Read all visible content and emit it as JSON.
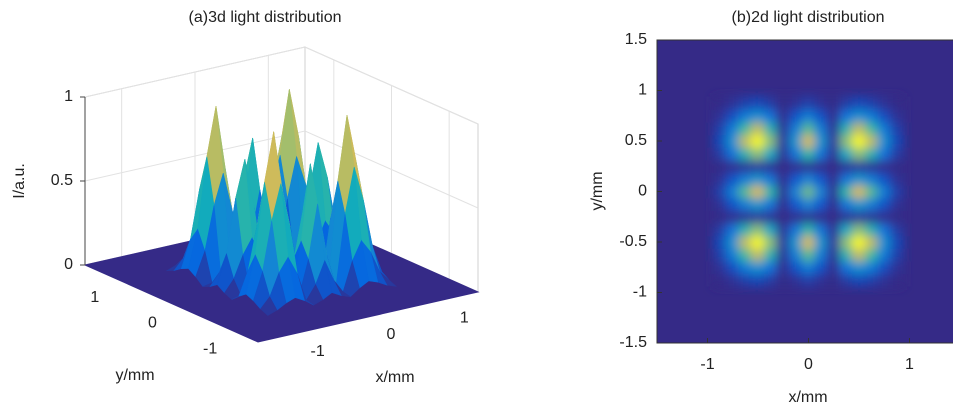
{
  "chart_data": [
    {
      "type": "surface3d",
      "title": "(a)3d light distribution",
      "xlabel": "x/mm",
      "ylabel": "y/mm",
      "zlabel": "I/a.u.",
      "colormap": "parula",
      "grid": true,
      "xlim": [
        -1.5,
        1.5
      ],
      "ylim": [
        -1.5,
        1.5
      ],
      "zlim": [
        0,
        1
      ],
      "xticks": [
        -1,
        0,
        1
      ],
      "yticks": [
        -1,
        0,
        1
      ],
      "zticks": [
        0,
        0.5,
        1
      ],
      "x": [
        -0.875,
        -0.75,
        -0.625,
        -0.5,
        -0.375,
        -0.25,
        -0.125,
        0,
        0.125,
        0.25,
        0.375,
        0.5,
        0.625,
        0.75,
        0.875
      ],
      "y": [
        -0.875,
        -0.75,
        -0.625,
        -0.5,
        -0.375,
        -0.25,
        -0.125,
        0,
        0.125,
        0.25,
        0.375,
        0.5,
        0.625,
        0.75,
        0.875
      ],
      "z": [
        [
          0,
          0.02,
          0.05,
          0.07,
          0.04,
          0,
          0.02,
          0.05,
          0.02,
          0,
          0.04,
          0.07,
          0.05,
          0.02,
          0
        ],
        [
          0.02,
          0.08,
          0.21,
          0.29,
          0.18,
          0.01,
          0.09,
          0.22,
          0.09,
          0.01,
          0.18,
          0.29,
          0.21,
          0.08,
          0.02
        ],
        [
          0.05,
          0.21,
          0.5,
          0.71,
          0.44,
          0.02,
          0.22,
          0.54,
          0.22,
          0.02,
          0.44,
          0.71,
          0.5,
          0.21,
          0.05
        ],
        [
          0.07,
          0.29,
          0.71,
          1,
          0.62,
          0.03,
          0.31,
          0.76,
          0.31,
          0.03,
          0.62,
          1,
          0.71,
          0.29,
          0.07
        ],
        [
          0.04,
          0.18,
          0.44,
          0.62,
          0.38,
          0.02,
          0.19,
          0.47,
          0.19,
          0.02,
          0.38,
          0.62,
          0.44,
          0.18,
          0.04
        ],
        [
          0,
          0.01,
          0.02,
          0.03,
          0.02,
          0,
          0.01,
          0.02,
          0.01,
          0,
          0.02,
          0.03,
          0.02,
          0.01,
          0
        ],
        [
          0.02,
          0.09,
          0.22,
          0.31,
          0.19,
          0.01,
          0.1,
          0.24,
          0.1,
          0.01,
          0.19,
          0.31,
          0.22,
          0.09,
          0.02
        ],
        [
          0.05,
          0.22,
          0.54,
          0.76,
          0.47,
          0.02,
          0.24,
          0.58,
          0.24,
          0.02,
          0.47,
          0.76,
          0.54,
          0.22,
          0.05
        ],
        [
          0.02,
          0.09,
          0.22,
          0.31,
          0.19,
          0.01,
          0.1,
          0.24,
          0.1,
          0.01,
          0.19,
          0.31,
          0.22,
          0.09,
          0.02
        ],
        [
          0,
          0.01,
          0.02,
          0.03,
          0.02,
          0,
          0.01,
          0.02,
          0.01,
          0,
          0.02,
          0.03,
          0.02,
          0.01,
          0
        ],
        [
          0.04,
          0.18,
          0.44,
          0.62,
          0.38,
          0.02,
          0.19,
          0.47,
          0.19,
          0.02,
          0.38,
          0.62,
          0.44,
          0.18,
          0.04
        ],
        [
          0.07,
          0.29,
          0.71,
          1,
          0.62,
          0.03,
          0.31,
          0.76,
          0.31,
          0.03,
          0.62,
          1,
          0.71,
          0.29,
          0.07
        ],
        [
          0.05,
          0.21,
          0.5,
          0.71,
          0.44,
          0.02,
          0.22,
          0.54,
          0.22,
          0.02,
          0.44,
          0.71,
          0.5,
          0.21,
          0.05
        ],
        [
          0.02,
          0.08,
          0.21,
          0.29,
          0.18,
          0.01,
          0.09,
          0.22,
          0.09,
          0.01,
          0.18,
          0.29,
          0.21,
          0.08,
          0.02
        ],
        [
          0,
          0.02,
          0.05,
          0.07,
          0.04,
          0,
          0.02,
          0.05,
          0.02,
          0,
          0.04,
          0.07,
          0.05,
          0.02,
          0
        ]
      ]
    },
    {
      "type": "heatmap",
      "title": "(b)2d light distribution",
      "xlabel": "x/mm",
      "ylabel": "y/mm",
      "colormap": "parula",
      "xlim": [
        -1.5,
        1.5
      ],
      "ylim": [
        -1.5,
        1.5
      ],
      "xticks": [
        -1,
        0,
        1
      ],
      "yticks": [
        -1.5,
        -1,
        -0.5,
        0,
        0.5,
        1,
        1.5
      ],
      "x": [
        -0.875,
        -0.75,
        -0.625,
        -0.5,
        -0.375,
        -0.25,
        -0.125,
        0,
        0.125,
        0.25,
        0.375,
        0.5,
        0.625,
        0.75,
        0.875
      ],
      "y": [
        -0.875,
        -0.75,
        -0.625,
        -0.5,
        -0.375,
        -0.25,
        -0.125,
        0,
        0.125,
        0.25,
        0.375,
        0.5,
        0.625,
        0.75,
        0.875
      ],
      "z": [
        [
          0,
          0.02,
          0.05,
          0.07,
          0.04,
          0,
          0.02,
          0.05,
          0.02,
          0,
          0.04,
          0.07,
          0.05,
          0.02,
          0
        ],
        [
          0.02,
          0.08,
          0.21,
          0.29,
          0.18,
          0.01,
          0.09,
          0.22,
          0.09,
          0.01,
          0.18,
          0.29,
          0.21,
          0.08,
          0.02
        ],
        [
          0.05,
          0.21,
          0.5,
          0.71,
          0.44,
          0.02,
          0.22,
          0.54,
          0.22,
          0.02,
          0.44,
          0.71,
          0.5,
          0.21,
          0.05
        ],
        [
          0.07,
          0.29,
          0.71,
          1,
          0.62,
          0.03,
          0.31,
          0.76,
          0.31,
          0.03,
          0.62,
          1,
          0.71,
          0.29,
          0.07
        ],
        [
          0.04,
          0.18,
          0.44,
          0.62,
          0.38,
          0.02,
          0.19,
          0.47,
          0.19,
          0.02,
          0.38,
          0.62,
          0.44,
          0.18,
          0.04
        ],
        [
          0,
          0.01,
          0.02,
          0.03,
          0.02,
          0,
          0.01,
          0.02,
          0.01,
          0,
          0.02,
          0.03,
          0.02,
          0.01,
          0
        ],
        [
          0.02,
          0.09,
          0.22,
          0.31,
          0.19,
          0.01,
          0.1,
          0.24,
          0.1,
          0.01,
          0.19,
          0.31,
          0.22,
          0.09,
          0.02
        ],
        [
          0.05,
          0.22,
          0.54,
          0.76,
          0.47,
          0.02,
          0.24,
          0.58,
          0.24,
          0.02,
          0.47,
          0.76,
          0.54,
          0.22,
          0.05
        ],
        [
          0.02,
          0.09,
          0.22,
          0.31,
          0.19,
          0.01,
          0.1,
          0.24,
          0.1,
          0.01,
          0.19,
          0.31,
          0.22,
          0.09,
          0.02
        ],
        [
          0,
          0.01,
          0.02,
          0.03,
          0.02,
          0,
          0.01,
          0.02,
          0.01,
          0,
          0.02,
          0.03,
          0.02,
          0.01,
          0
        ],
        [
          0.04,
          0.18,
          0.44,
          0.62,
          0.38,
          0.02,
          0.19,
          0.47,
          0.19,
          0.02,
          0.38,
          0.62,
          0.44,
          0.18,
          0.04
        ],
        [
          0.07,
          0.29,
          0.71,
          1,
          0.62,
          0.03,
          0.31,
          0.76,
          0.31,
          0.03,
          0.62,
          1,
          0.71,
          0.29,
          0.07
        ],
        [
          0.05,
          0.21,
          0.5,
          0.71,
          0.44,
          0.02,
          0.22,
          0.54,
          0.22,
          0.02,
          0.44,
          0.71,
          0.5,
          0.21,
          0.05
        ],
        [
          0.02,
          0.08,
          0.21,
          0.29,
          0.18,
          0.01,
          0.09,
          0.22,
          0.09,
          0.01,
          0.18,
          0.29,
          0.21,
          0.08,
          0.02
        ],
        [
          0,
          0.02,
          0.05,
          0.07,
          0.04,
          0,
          0.02,
          0.05,
          0.02,
          0,
          0.04,
          0.07,
          0.05,
          0.02,
          0
        ]
      ]
    }
  ]
}
